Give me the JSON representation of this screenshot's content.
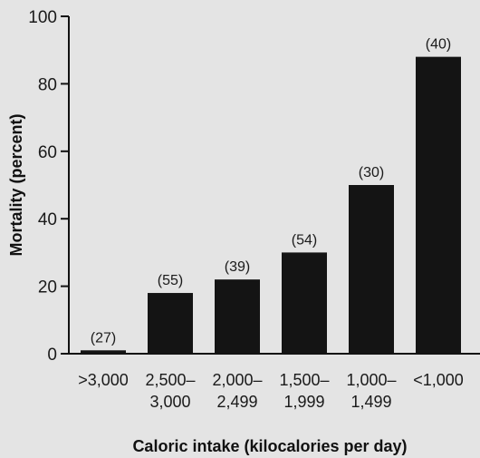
{
  "chart_data": {
    "type": "bar",
    "title": "",
    "xlabel": "Caloric intake (kilocalories per day)",
    "ylabel": "Mortality (percent)",
    "ylim": [
      0,
      100
    ],
    "yticks": [
      0,
      20,
      40,
      60,
      80,
      100
    ],
    "categories": [
      [
        ">3,000"
      ],
      [
        "2,500–",
        "3,000"
      ],
      [
        "2,000–",
        "2,499"
      ],
      [
        "1,500–",
        "1,999"
      ],
      [
        "1,000–",
        "1,499"
      ],
      [
        "<1,000"
      ]
    ],
    "values": [
      1,
      18,
      22,
      30,
      50,
      88
    ],
    "sample_sizes": [
      "(27)",
      "(55)",
      "(39)",
      "(54)",
      "(30)",
      "(40)"
    ],
    "grid": false,
    "legend": "none",
    "colors": {
      "bar": "#141414",
      "axis": "#111111",
      "background": "#e4e4e4"
    }
  }
}
